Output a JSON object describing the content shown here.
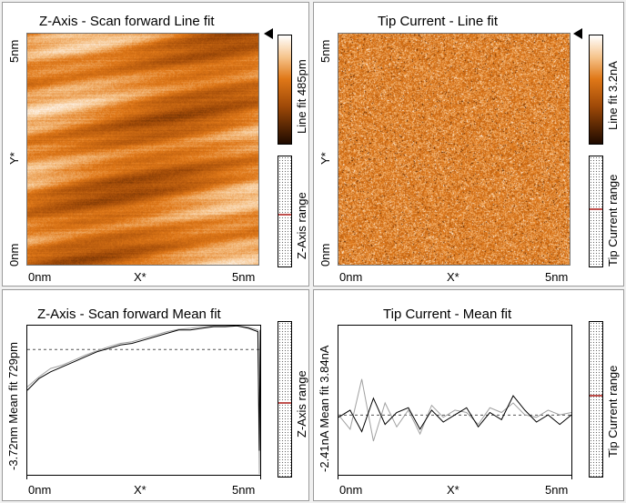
{
  "panels": {
    "z_line": {
      "title": "Z-Axis - Scan forward    Line fit",
      "y_top": "5nm",
      "y_mid": "Y*",
      "y_bottom": "0nm",
      "x_left": "0nm",
      "x_mid": "X*",
      "x_right": "5nm",
      "colorbar_label": "Line fit 485pm",
      "range_label": "Z-Axis range"
    },
    "tip_line": {
      "title": "Tip Current - Line fit",
      "y_top": "5nm",
      "y_mid": "Y*",
      "y_bottom": "0nm",
      "x_left": "0nm",
      "x_mid": "X*",
      "x_right": "5nm",
      "colorbar_label": "Line fit 3.2nA",
      "range_label": "Tip Current range"
    },
    "z_mean": {
      "title": "Z-Axis - Scan forward    Mean fit",
      "y_label": "-3.72nm Mean fit   729pm",
      "x_left": "0nm",
      "x_mid": "X*",
      "x_right": "5nm",
      "range_label": "Z-Axis range"
    },
    "tip_mean": {
      "title": "Tip Current - Mean fit",
      "y_label": "-2.41nA   Mean fit   3.84nA",
      "x_left": "0nm",
      "x_mid": "X*",
      "x_right": "5nm",
      "range_label": "Tip Current range"
    }
  },
  "colors": {
    "scan_dark": "#2a1000",
    "scan_mid": "#d4640c",
    "scan_light": "#ffffff",
    "forward_line": "#000000",
    "backward_line": "#a0a0a0",
    "range_marker": "#c0504d"
  },
  "icons": [
    "current-scan-arrow-icon"
  ],
  "chart_data": [
    {
      "type": "line",
      "title": "Z-Axis - Scan forward    Mean fit",
      "xlabel": "X*",
      "ylabel": "Mean fit",
      "xlim": [
        0,
        5
      ],
      "ylim": [
        -3.72,
        0.729
      ],
      "series": [
        {
          "x": [
            0,
            0.25,
            0.5,
            0.75,
            1.0,
            1.25,
            1.5,
            1.75,
            2.0,
            2.25,
            2.5,
            2.75,
            3.0,
            3.25,
            3.5,
            3.75,
            4.0,
            4.25,
            4.5,
            4.75,
            4.95,
            4.98,
            5.0
          ],
          "values": [
            -1.2,
            -0.85,
            -0.65,
            -0.5,
            -0.35,
            -0.2,
            -0.05,
            0.05,
            0.15,
            0.2,
            0.3,
            0.4,
            0.5,
            0.6,
            0.6,
            0.65,
            0.7,
            0.7,
            0.72,
            0.65,
            0.55,
            -3.0,
            0.6
          ]
        },
        {
          "x": [
            0,
            0.25,
            0.5,
            0.75,
            1.0,
            1.25,
            1.5,
            1.75,
            2.0,
            2.25,
            2.5,
            2.75,
            3.0,
            3.25,
            3.5,
            3.75,
            4.0,
            4.25,
            4.5,
            4.75,
            4.95,
            4.98,
            5.0
          ],
          "values": [
            -1.1,
            -0.8,
            -0.55,
            -0.45,
            -0.3,
            -0.15,
            -0.02,
            0.1,
            0.2,
            0.25,
            0.35,
            0.45,
            0.55,
            0.62,
            0.65,
            0.7,
            0.72,
            0.73,
            0.72,
            0.68,
            0.6,
            -3.7,
            0.6
          ]
        }
      ]
    },
    {
      "type": "line",
      "title": "Tip Current - Mean fit",
      "xlabel": "X*",
      "ylabel": "Mean fit",
      "xlim": [
        0,
        5
      ],
      "ylim": [
        -2.41,
        3.84
      ],
      "series": [
        {
          "x": [
            0,
            0.25,
            0.5,
            0.75,
            1.0,
            1.25,
            1.5,
            1.75,
            2.0,
            2.25,
            2.5,
            2.75,
            3.0,
            3.25,
            3.5,
            3.75,
            4.0,
            4.25,
            4.5,
            4.75,
            5.0
          ],
          "values": [
            0.0,
            0.3,
            -0.6,
            0.8,
            -0.3,
            0.2,
            0.4,
            -0.5,
            0.3,
            -0.2,
            0.1,
            0.4,
            -0.4,
            0.2,
            -0.1,
            0.9,
            0.3,
            -0.2,
            0.1,
            -0.3,
            0.1
          ]
        },
        {
          "x": [
            0,
            0.25,
            0.5,
            0.75,
            1.0,
            1.25,
            1.5,
            1.75,
            2.0,
            2.25,
            2.5,
            2.75,
            3.0,
            3.25,
            3.5,
            3.75,
            4.0,
            4.25,
            4.5,
            4.75,
            5.0
          ],
          "values": [
            0.1,
            -0.5,
            1.6,
            -1.0,
            0.6,
            -0.4,
            0.3,
            -0.7,
            0.5,
            0.0,
            0.3,
            0.2,
            -0.3,
            0.4,
            0.2,
            0.6,
            0.1,
            0.0,
            0.3,
            0.1,
            0.2
          ]
        }
      ]
    }
  ]
}
